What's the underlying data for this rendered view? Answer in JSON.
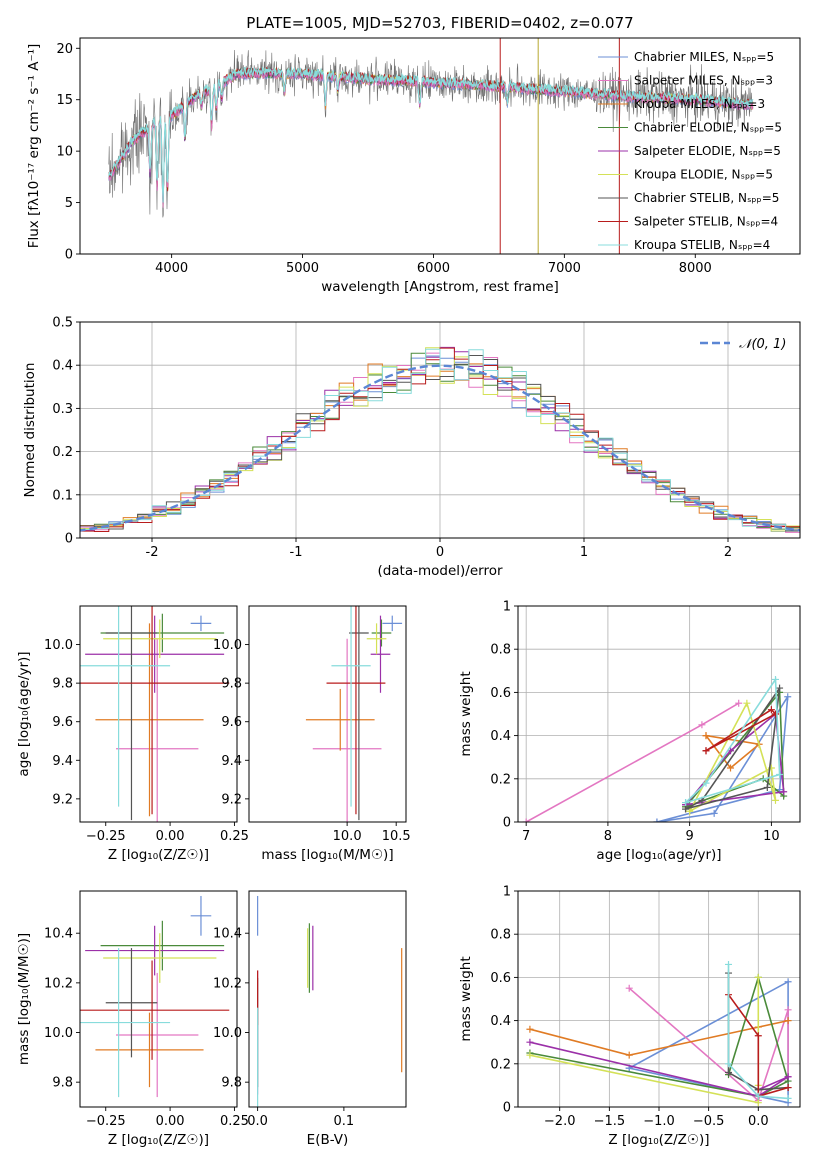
{
  "legend_labels": [
    "Chabrier MILES, N_SSP=5",
    "Salpeter MILES, N_SSP=3",
    "Kroupa MILES, N_SSP=3",
    "Chabrier ELODIE, N_SSP=5",
    "Salpeter ELODIE, N_SSP=5",
    "Kroupa ELODIE, N_SSP=5",
    "Chabrier STELIB, N_SSP=5",
    "Salpeter STELIB, N_SSP=4",
    "Kroupa STELIB, N_SSP=4"
  ],
  "colors": [
    "#6b8fd6",
    "#e377c2",
    "#e07b24",
    "#4a8a3a",
    "#9b30a8",
    "#d4e157",
    "#555555",
    "#b81c1c",
    "#88dcdc"
  ],
  "chart_data": [
    {
      "id": "spectrum",
      "type": "line",
      "title": "PLATE=1005, MJD=52703, FIBERID=0402, z=0.077",
      "xlabel": "wavelength [Angstrom, rest frame]",
      "ylabel": "Flux [fλ10⁻¹⁷ erg cm⁻² s⁻¹ A⁻¹]",
      "xlim": [
        3300,
        8800
      ],
      "ylim": [
        0,
        21
      ],
      "xticks": [
        4000,
        5000,
        6000,
        7000,
        8000
      ],
      "yticks": [
        0,
        5,
        10,
        15,
        20
      ],
      "legend": "top-right",
      "continuum": {
        "x": [
          3500,
          3600,
          3700,
          3800,
          3900,
          4000,
          4100,
          4200,
          4300,
          4400,
          4500,
          4700,
          5000,
          5500,
          6000,
          6500,
          7000,
          7500,
          8000,
          8400
        ],
        "y": [
          7,
          9,
          11,
          12,
          13,
          13.5,
          14.5,
          15.5,
          16,
          16.8,
          17.5,
          17.6,
          17.5,
          17,
          16.7,
          16.3,
          15.8,
          15.3,
          15,
          14.5
        ]
      }
    },
    {
      "id": "residuals",
      "type": "histogram",
      "xlabel": "(data-model)/error",
      "ylabel": "Normed distribution",
      "xlim": [
        -2.5,
        2.5
      ],
      "ylim": [
        0,
        0.5
      ],
      "xticks": [
        -2,
        -1,
        0,
        1,
        2
      ],
      "yticks": [
        0,
        0.1,
        0.2,
        0.3,
        0.4,
        0.5
      ],
      "grid": true,
      "legend": "top-right",
      "reference_label": "𝒩(0, 1)",
      "bin_width": 0.1
    },
    {
      "id": "age_vs_Z",
      "type": "errorbar",
      "xlabel": "Z [log₁₀(Z/Z☉)]",
      "ylabel": "age  [log₁₀(age/yr)]",
      "xlim": [
        -0.35,
        0.26
      ],
      "ylim": [
        9.08,
        10.2
      ],
      "xticks": [
        -0.25,
        0,
        0.25
      ],
      "xticklabels": [
        "−0.25",
        "0.00",
        "0.25"
      ],
      "yticks": [
        9.2,
        9.4,
        9.6,
        9.8,
        10.0
      ],
      "yticklabels": [
        "9.2",
        "9.4",
        "9.6",
        "9.8",
        "10.0"
      ],
      "points": [
        {
          "x": 0.12,
          "y": 10.11,
          "xerr": 0.04,
          "yerr": 0.04
        },
        {
          "x": -0.05,
          "y": 9.46,
          "xerr": 0.16,
          "yerr": 0.57
        },
        {
          "x": -0.08,
          "y": 9.61,
          "xerr": 0.21,
          "yerr": 0.5
        },
        {
          "x": -0.03,
          "y": 10.06,
          "xerr": 0.24,
          "yerr": 0.1
        },
        {
          "x": -0.06,
          "y": 9.95,
          "xerr": 0.27,
          "yerr": 0.2
        },
        {
          "x": -0.04,
          "y": 10.03,
          "xerr": 0.22,
          "yerr": 0.1
        },
        {
          "x": -0.15,
          "y": 10.06,
          "xerr": 0.1,
          "yerr": 0.97
        },
        {
          "x": -0.07,
          "y": 9.8,
          "xerr": 0.3,
          "yerr": 0.68
        },
        {
          "x": -0.2,
          "y": 9.89,
          "xerr": 0.2,
          "yerr": 0.73
        }
      ]
    },
    {
      "id": "age_vs_mass",
      "type": "errorbar",
      "xlabel": "mass [log₁₀(M/M☉)]",
      "ylabel": "",
      "xlim": [
        9.0,
        10.6
      ],
      "ylim": [
        9.08,
        10.2
      ],
      "xticks": [
        10.0,
        10.5
      ],
      "xticklabels": [
        "10.0",
        "10.5"
      ],
      "yticks": [
        9.2,
        9.4,
        9.6,
        9.8,
        10.0
      ],
      "yticklabels": [
        "9.2",
        "9.4",
        "9.6",
        "9.8",
        "10.0"
      ],
      "points": [
        {
          "x": 10.46,
          "y": 10.11,
          "xerr": 0.1,
          "yerr": 0.04
        },
        {
          "x": 10.0,
          "y": 9.46,
          "xerr": 0.35,
          "yerr": 0.57
        },
        {
          "x": 9.93,
          "y": 9.61,
          "xerr": 0.35,
          "yerr": 0.16
        },
        {
          "x": 10.35,
          "y": 10.06,
          "xerr": 0.1,
          "yerr": 0.07
        },
        {
          "x": 10.34,
          "y": 9.95,
          "xerr": 0.1,
          "yerr": 0.2
        },
        {
          "x": 10.3,
          "y": 10.03,
          "xerr": 0.1,
          "yerr": 0.08
        },
        {
          "x": 10.12,
          "y": 10.06,
          "xerr": 0.1,
          "yerr": 0.97
        },
        {
          "x": 10.09,
          "y": 9.8,
          "xerr": 0.3,
          "yerr": 0.68
        },
        {
          "x": 10.04,
          "y": 9.89,
          "xerr": 0.2,
          "yerr": 0.73
        }
      ]
    },
    {
      "id": "mass_weight_vs_age",
      "type": "line",
      "xlabel": "age  [log₁₀(age/yr)]",
      "ylabel": "mass weight",
      "xlim": [
        6.9,
        10.35
      ],
      "ylim": [
        0,
        1
      ],
      "xticks": [
        7,
        8,
        9,
        10
      ],
      "yticks": [
        0,
        0.2,
        0.4,
        0.6,
        0.8,
        1.0
      ],
      "grid": true,
      "series": [
        {
          "x": [
            8.6,
            9.3,
            10.2,
            10.1,
            8.6
          ],
          "y": [
            0,
            0.04,
            0.58,
            0.15,
            0
          ]
        },
        {
          "x": [
            7.0,
            9.15,
            9.6
          ],
          "y": [
            0,
            0.45,
            0.55
          ]
        },
        {
          "x": [
            9.2,
            9.5,
            9.85,
            9.2
          ],
          "y": [
            0.4,
            0.25,
            0.36,
            0.4
          ]
        },
        {
          "x": [
            8.95,
            9.9,
            10.15,
            10.1,
            8.95
          ],
          "y": [
            0.07,
            0.2,
            0.12,
            0.6,
            0.07
          ]
        },
        {
          "x": [
            8.95,
            9.5,
            10.05,
            10.15,
            8.95
          ],
          "y": [
            0.08,
            0.33,
            0.5,
            0.14,
            0.08
          ]
        },
        {
          "x": [
            9.0,
            10.0,
            10.05,
            9.7,
            9.0
          ],
          "y": [
            0.05,
            0.25,
            0.1,
            0.55,
            0.05
          ]
        },
        {
          "x": [
            8.95,
            9.15,
            10.1,
            9.95,
            8.95
          ],
          "y": [
            0.06,
            0.1,
            0.62,
            0.16,
            0.06
          ]
        },
        {
          "x": [
            9.2,
            10.0,
            10.05,
            9.2
          ],
          "y": [
            0.33,
            0.52,
            0.5,
            0.33
          ]
        },
        {
          "x": [
            8.95,
            9.2,
            10.05,
            10.1,
            8.95
          ],
          "y": [
            0.09,
            0.18,
            0.66,
            0.22,
            0.09
          ]
        }
      ]
    },
    {
      "id": "mass_vs_Z",
      "type": "errorbar",
      "xlabel": "Z [log₁₀(Z/Z☉)]",
      "ylabel": "mass [log₁₀(M/M☉)]",
      "xlim": [
        -0.35,
        0.26
      ],
      "ylim": [
        9.7,
        10.57
      ],
      "xticks": [
        -0.25,
        0,
        0.25
      ],
      "xticklabels": [
        "−0.25",
        "0.00",
        "0.25"
      ],
      "yticks": [
        9.8,
        10.0,
        10.2,
        10.4
      ],
      "yticklabels": [
        "9.8",
        "10.0",
        "10.2",
        "10.4"
      ],
      "points": [
        {
          "x": 0.12,
          "y": 10.47,
          "xerr": 0.04,
          "yerr": 0.08
        },
        {
          "x": -0.05,
          "y": 9.99,
          "xerr": 0.16,
          "yerr": 0.25
        },
        {
          "x": -0.08,
          "y": 9.93,
          "xerr": 0.21,
          "yerr": 0.15
        },
        {
          "x": -0.03,
          "y": 10.35,
          "xerr": 0.24,
          "yerr": 0.1
        },
        {
          "x": -0.06,
          "y": 10.33,
          "xerr": 0.27,
          "yerr": 0.1
        },
        {
          "x": -0.04,
          "y": 10.3,
          "xerr": 0.22,
          "yerr": 0.1
        },
        {
          "x": -0.15,
          "y": 10.12,
          "xerr": 0.1,
          "yerr": 0.22
        },
        {
          "x": -0.07,
          "y": 10.09,
          "xerr": 0.3,
          "yerr": 0.2
        },
        {
          "x": -0.2,
          "y": 10.04,
          "xerr": 0.2,
          "yerr": 0.3
        }
      ]
    },
    {
      "id": "mass_vs_EBV",
      "type": "errorbar",
      "xlabel": "E(B-V)",
      "ylabel": "",
      "xlim": [
        -0.01,
        0.172
      ],
      "ylim": [
        9.7,
        10.57
      ],
      "xticks": [
        0,
        0.1
      ],
      "xticklabels": [
        "0.0",
        "0.1"
      ],
      "yticks": [
        9.8,
        10.0,
        10.2,
        10.4
      ],
      "yticklabels": [
        "9.8",
        "10.0",
        "10.2",
        "10.4"
      ],
      "points": [
        {
          "x": 0.0,
          "y": 10.47,
          "xerr": 0,
          "yerr": 0.08
        },
        {
          "x": 0.0,
          "y": 10.0,
          "xerr": 0,
          "yerr": 0.25
        },
        {
          "x": 0.167,
          "y": 10.09,
          "xerr": 0,
          "yerr": 0.25
        },
        {
          "x": 0.06,
          "y": 10.3,
          "xerr": 0,
          "yerr": 0.14
        },
        {
          "x": 0.064,
          "y": 10.3,
          "xerr": 0,
          "yerr": 0.13
        },
        {
          "x": 0.058,
          "y": 10.3,
          "xerr": 0,
          "yerr": 0.12
        },
        {
          "x": 0.0,
          "y": 10.0,
          "xerr": 0,
          "yerr": 0.22
        },
        {
          "x": 0.0,
          "y": 10.14,
          "xerr": 0,
          "yerr": 0.11
        },
        {
          "x": 0.0,
          "y": 9.9,
          "xerr": 0,
          "yerr": 0.2
        }
      ]
    },
    {
      "id": "mass_weight_vs_Z",
      "type": "line",
      "xlabel": "Z [log₁₀(Z/Z☉)]",
      "ylabel": "mass weight",
      "xlim": [
        -2.42,
        0.42
      ],
      "ylim": [
        0,
        1
      ],
      "xticks": [
        -2.0,
        -1.5,
        -1.0,
        -0.5,
        0.0
      ],
      "xticklabels": [
        "−2.0",
        "−1.5",
        "−1.0",
        "−0.5",
        "0.0"
      ],
      "yticks": [
        0,
        0.2,
        0.4,
        0.6,
        0.8,
        1.0
      ],
      "grid": true,
      "series": [
        {
          "x": [
            -1.3,
            0.3,
            0.3,
            -1.3
          ],
          "y": [
            0.18,
            0.58,
            0.02,
            0.18
          ]
        },
        {
          "x": [
            -1.3,
            0.0,
            0.3,
            0.3
          ],
          "y": [
            0.55,
            0.03,
            0.45,
            0.14
          ]
        },
        {
          "x": [
            -2.3,
            -1.3,
            0.0,
            0.3
          ],
          "y": [
            0.36,
            0.24,
            0.37,
            0.4
          ]
        },
        {
          "x": [
            -2.3,
            0.0,
            0.3,
            0.0,
            -0.3
          ],
          "y": [
            0.25,
            0.05,
            0.12,
            0.6,
            0.15
          ]
        },
        {
          "x": [
            -2.3,
            0.0,
            0.3,
            0.0
          ],
          "y": [
            0.3,
            0.05,
            0.14,
            0.08
          ]
        },
        {
          "x": [
            -2.3,
            0.0,
            0.0,
            0.0
          ],
          "y": [
            0.24,
            0.02,
            0.6,
            0.1
          ]
        },
        {
          "x": [
            -0.3,
            -0.3,
            0.0,
            0.3
          ],
          "y": [
            0.62,
            0.16,
            0.08,
            0.09
          ]
        },
        {
          "x": [
            -0.3,
            0.0,
            0.0,
            0.3
          ],
          "y": [
            0.52,
            0.33,
            0.05,
            0.09
          ]
        },
        {
          "x": [
            -0.3,
            -0.3,
            0.0,
            0.3
          ],
          "y": [
            0.66,
            0.2,
            0.05,
            0.04
          ]
        }
      ]
    }
  ]
}
